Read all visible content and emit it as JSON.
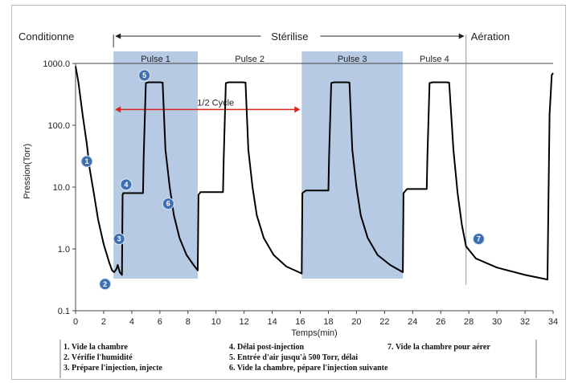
{
  "chart_data": {
    "type": "line",
    "xlabel": "Temps(min)",
    "ylabel": "Pression(Torr)",
    "xlim": [
      0,
      34
    ],
    "ylim": [
      0.1,
      1000
    ],
    "yscale": "log",
    "x_ticks": [
      "0",
      "2",
      "4",
      "6",
      "8",
      "10",
      "12",
      "14",
      "16",
      "18",
      "20",
      "22",
      "24",
      "26",
      "28",
      "30",
      "32",
      "34"
    ],
    "y_ticks": [
      "0.1",
      "1.0",
      "10.0",
      "100.0",
      "1000.0"
    ],
    "phases": [
      {
        "label": "Conditionne",
        "x_start": 0,
        "x_end": 2.7
      },
      {
        "label": "Stérilise",
        "x_start": 2.7,
        "x_end": 27.8
      },
      {
        "label": "Aération",
        "x_start": 27.8,
        "x_end": 34
      }
    ],
    "pulses": [
      {
        "label": "Pulse 1",
        "x_start": 2.7,
        "x_end": 8.7,
        "shaded": true
      },
      {
        "label": "Pulse 2",
        "x_start": 8.7,
        "x_end": 16.1,
        "shaded": false
      },
      {
        "label": "Pulse 3",
        "x_start": 16.1,
        "x_end": 23.3,
        "shaded": true
      },
      {
        "label": "Pulse 4",
        "x_start": 23.3,
        "x_end": 27.8,
        "shaded": false
      }
    ],
    "half_cycle": {
      "label": "1/2 Cycle",
      "x_start": 2.7,
      "x_end": 16.1,
      "y": 180
    },
    "series": [
      {
        "points": [
          [
            0,
            900
          ],
          [
            0.2,
            500
          ],
          [
            0.5,
            150
          ],
          [
            0.8,
            50
          ],
          [
            1.0,
            20
          ],
          [
            1.3,
            8
          ],
          [
            1.6,
            3
          ],
          [
            2.0,
            1.2
          ],
          [
            2.4,
            0.6
          ],
          [
            2.6,
            0.45
          ],
          [
            2.75,
            0.42
          ],
          [
            2.9,
            0.47
          ],
          [
            3.0,
            0.55
          ],
          [
            3.15,
            0.42
          ],
          [
            3.3,
            0.38
          ],
          [
            3.35,
            7.5
          ],
          [
            3.4,
            8.0
          ],
          [
            4.8,
            8.0
          ],
          [
            4.85,
            30
          ],
          [
            5.0,
            480
          ],
          [
            5.2,
            495
          ],
          [
            6.0,
            495
          ],
          [
            6.2,
            490
          ],
          [
            6.4,
            40
          ],
          [
            6.7,
            10
          ],
          [
            7.0,
            3.5
          ],
          [
            7.4,
            1.5
          ],
          [
            7.9,
            0.8
          ],
          [
            8.4,
            0.55
          ],
          [
            8.7,
            0.45
          ],
          [
            8.75,
            7.5
          ],
          [
            8.9,
            8.3
          ],
          [
            10.5,
            8.3
          ],
          [
            10.55,
            30
          ],
          [
            10.7,
            480
          ],
          [
            10.9,
            495
          ],
          [
            11.9,
            495
          ],
          [
            12.1,
            490
          ],
          [
            12.3,
            40
          ],
          [
            12.6,
            10
          ],
          [
            12.9,
            3.5
          ],
          [
            13.4,
            1.5
          ],
          [
            14.1,
            0.8
          ],
          [
            15.0,
            0.52
          ],
          [
            16.1,
            0.4
          ],
          [
            16.15,
            8.0
          ],
          [
            16.4,
            8.8
          ],
          [
            18.0,
            8.8
          ],
          [
            18.05,
            30
          ],
          [
            18.2,
            480
          ],
          [
            18.4,
            495
          ],
          [
            19.3,
            495
          ],
          [
            19.5,
            490
          ],
          [
            19.7,
            40
          ],
          [
            20.0,
            10
          ],
          [
            20.3,
            3.5
          ],
          [
            20.8,
            1.5
          ],
          [
            21.5,
            0.8
          ],
          [
            22.4,
            0.55
          ],
          [
            23.3,
            0.42
          ],
          [
            23.35,
            8.0
          ],
          [
            23.6,
            9.3
          ],
          [
            25.0,
            9.3
          ],
          [
            25.05,
            30
          ],
          [
            25.2,
            480
          ],
          [
            25.4,
            495
          ],
          [
            26.4,
            495
          ],
          [
            26.6,
            490
          ],
          [
            26.9,
            40
          ],
          [
            27.2,
            8
          ],
          [
            27.5,
            2.5
          ],
          [
            27.8,
            1.1
          ],
          [
            28.5,
            0.7
          ],
          [
            30.0,
            0.5
          ],
          [
            32.0,
            0.38
          ],
          [
            33.6,
            0.32
          ],
          [
            33.65,
            3
          ],
          [
            33.75,
            150
          ],
          [
            33.9,
            650
          ],
          [
            34.0,
            700
          ]
        ]
      }
    ],
    "annotations": [
      {
        "label": "1",
        "x": 0.8,
        "y": 26
      },
      {
        "label": "2",
        "x": 2.1,
        "y": 0.27
      },
      {
        "label": "3",
        "x": 3.1,
        "y": 1.45
      },
      {
        "label": "4",
        "x": 3.6,
        "y": 11
      },
      {
        "label": "5",
        "x": 4.9,
        "y": 640
      },
      {
        "label": "6",
        "x": 6.6,
        "y": 5.4
      },
      {
        "label": "7",
        "x": 28.7,
        "y": 1.45
      }
    ],
    "legend_items": [
      "1. Vide la chambre",
      "2. Vérifie l'humidité",
      "3. Prépare l'injection, injecte",
      "4. Délai post-injection",
      "5. Entrée d'air jusqu'à 500 Torr, délai",
      "6. Vide la chambre, pépare l'injection suivante",
      "7. Vide la chambre pour aérer"
    ],
    "colors": {
      "curve": "#000000",
      "pulse_shade": "#a9c1de",
      "half_cycle_arrow": "#d9261c",
      "badge": "#3d6fb2",
      "phase_divider": "#6f9fcf"
    }
  }
}
